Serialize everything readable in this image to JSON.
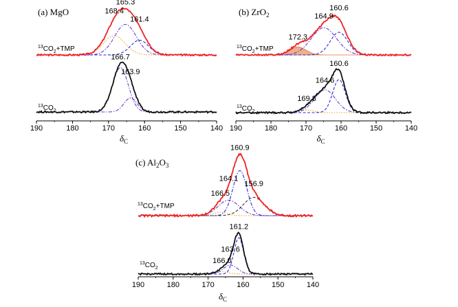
{
  "chart_data": [
    {
      "type": "line",
      "panel_label": "(a)  MgO",
      "x_axis": {
        "label_main": "δ",
        "label_sub": "C",
        "range": [
          190,
          140
        ],
        "ticks": [
          190,
          180,
          170,
          160,
          150,
          140
        ]
      },
      "traces": [
        {
          "name": "13CO2+TMP",
          "label_sup": "13",
          "label_main": "CO",
          "label_sub": "2",
          "label_rest": "+TMP",
          "color": "#ee2222",
          "experimental": {
            "baseline": 0,
            "noise": 0.35
          },
          "components": [
            {
              "center": 168.4,
              "width": 3.0,
              "height": 8.5,
              "color": "#e8a020",
              "style": "dotted"
            },
            {
              "center": 165.3,
              "width": 3.0,
              "height": 13.5,
              "color": "#6a3ad0",
              "style": "dash-dot"
            },
            {
              "center": 161.4,
              "width": 2.5,
              "height": 6.5,
              "color": "#2a2adc",
              "style": "dashed"
            }
          ],
          "peak_labels": [
            {
              "text": "168.4",
              "x": 168.4
            },
            {
              "text": "165.3",
              "x": 165.3
            },
            {
              "text": "161.4",
              "x": 161.4
            }
          ]
        },
        {
          "name": "13CO2",
          "label_sup": "13",
          "label_main": "CO",
          "label_sub": "2",
          "label_rest": "",
          "color": "#111111",
          "experimental": {
            "baseline": 0,
            "noise": 0.35
          },
          "components": [
            {
              "center": 166.7,
              "width": 2.2,
              "height": 19,
              "color": "#6a3ad0",
              "style": "dash-dot"
            },
            {
              "center": 163.9,
              "width": 1.8,
              "height": 6,
              "color": "#6a3ad0",
              "style": "dash-dot"
            }
          ],
          "peak_labels": [
            {
              "text": "166.7",
              "x": 166.7
            },
            {
              "text": "163.9",
              "x": 163.9
            }
          ]
        }
      ]
    },
    {
      "type": "line",
      "panel_label_main": "(b)  ZrO",
      "panel_label_sub": "2",
      "x_axis": {
        "label_main": "δ",
        "label_sub": "C",
        "range": [
          190,
          140
        ],
        "ticks": [
          190,
          180,
          170,
          160,
          150,
          140
        ]
      },
      "traces": [
        {
          "name": "13CO2+TMP",
          "label_sup": "13",
          "label_main": "CO",
          "label_sub": "2",
          "label_rest": "+TMP",
          "color": "#ee2222",
          "experimental": {
            "baseline": 0,
            "noise": 0.35
          },
          "components": [
            {
              "center": 172.3,
              "width": 2.3,
              "height": 3.5,
              "color": "#e07030",
              "style": "filled"
            },
            {
              "center": 164.9,
              "width": 3.6,
              "height": 12,
              "color": "#6a3ad0",
              "style": "dash-dot"
            },
            {
              "center": 160.6,
              "width": 2.5,
              "height": 10,
              "color": "#2a2adc",
              "style": "dashed"
            }
          ],
          "peak_labels": [
            {
              "text": "172.3",
              "x": 172.3
            },
            {
              "text": "164.9",
              "x": 164.9
            },
            {
              "text": "160.6",
              "x": 160.6
            }
          ]
        },
        {
          "name": "13CO2",
          "label_sup": "13",
          "label_main": "CO",
          "label_sub": "2",
          "label_rest": "",
          "color": "#111111",
          "experimental": {
            "baseline": 0,
            "noise": 0.35
          },
          "components": [
            {
              "center": 169.8,
              "width": 2.0,
              "height": 1.0,
              "color": "#e8a020",
              "style": "dotted"
            },
            {
              "center": 164.6,
              "width": 3.0,
              "height": 9,
              "color": "#6a3ad0",
              "style": "dash-dot"
            },
            {
              "center": 160.6,
              "width": 1.8,
              "height": 13,
              "color": "#2a2adc",
              "style": "dashed"
            }
          ],
          "peak_labels": [
            {
              "text": "169.8",
              "x": 169.8
            },
            {
              "text": "164.6",
              "x": 164.6
            },
            {
              "text": "160.6",
              "x": 160.6
            }
          ]
        }
      ]
    },
    {
      "type": "line",
      "panel_label_main": "(c)  Al",
      "panel_label_sub1": "2",
      "panel_label_mid": "O",
      "panel_label_sub2": "3",
      "x_axis": {
        "label_main": "δ",
        "label_sub": "C",
        "range": [
          190,
          140
        ],
        "ticks": [
          190,
          180,
          170,
          160,
          150,
          140
        ]
      },
      "traces": [
        {
          "name": "13CO2+TMP",
          "label_sup": "13",
          "label_main": "CO",
          "label_sub": "2",
          "label_rest": "+TMP",
          "color": "#ee2222",
          "experimental": {
            "baseline": 0,
            "noise": 0.35
          },
          "components": [
            {
              "center": 166.5,
              "width": 2.0,
              "height": 1.2,
              "color": "#e8a020",
              "style": "dotted"
            },
            {
              "center": 164.1,
              "width": 3.0,
              "height": 5.5,
              "color": "#6a3ad0",
              "style": "dash-dot"
            },
            {
              "center": 160.9,
              "width": 2.0,
              "height": 16,
              "color": "#2a2adc",
              "style": "dash-dot"
            },
            {
              "center": 156.9,
              "width": 3.0,
              "height": 6.5,
              "color": "#333333",
              "style": "dashed"
            }
          ],
          "peak_labels": [
            {
              "text": "166.5",
              "x": 166.5
            },
            {
              "text": "164.1",
              "x": 164.1
            },
            {
              "text": "160.9",
              "x": 160.9
            },
            {
              "text": "156.9",
              "x": 156.9
            }
          ]
        },
        {
          "name": "13CO2",
          "label_sup": "13",
          "label_main": "CO",
          "label_sub": "2",
          "label_rest": "",
          "color": "#111111",
          "experimental": {
            "baseline": 0,
            "noise": 0.35
          },
          "components": [
            {
              "center": 166.0,
              "width": 1.8,
              "height": 1.0,
              "color": "#e8a020",
              "style": "dotted"
            },
            {
              "center": 163.6,
              "width": 2.0,
              "height": 4.0,
              "color": "#6a3ad0",
              "style": "dash-dot"
            },
            {
              "center": 161.2,
              "width": 1.4,
              "height": 16,
              "color": "#2a2adc",
              "style": "dashed"
            }
          ],
          "peak_labels": [
            {
              "text": "166.0",
              "x": 166.0
            },
            {
              "text": "163.6",
              "x": 163.6
            },
            {
              "text": "161.2",
              "x": 161.2
            }
          ]
        }
      ]
    }
  ]
}
